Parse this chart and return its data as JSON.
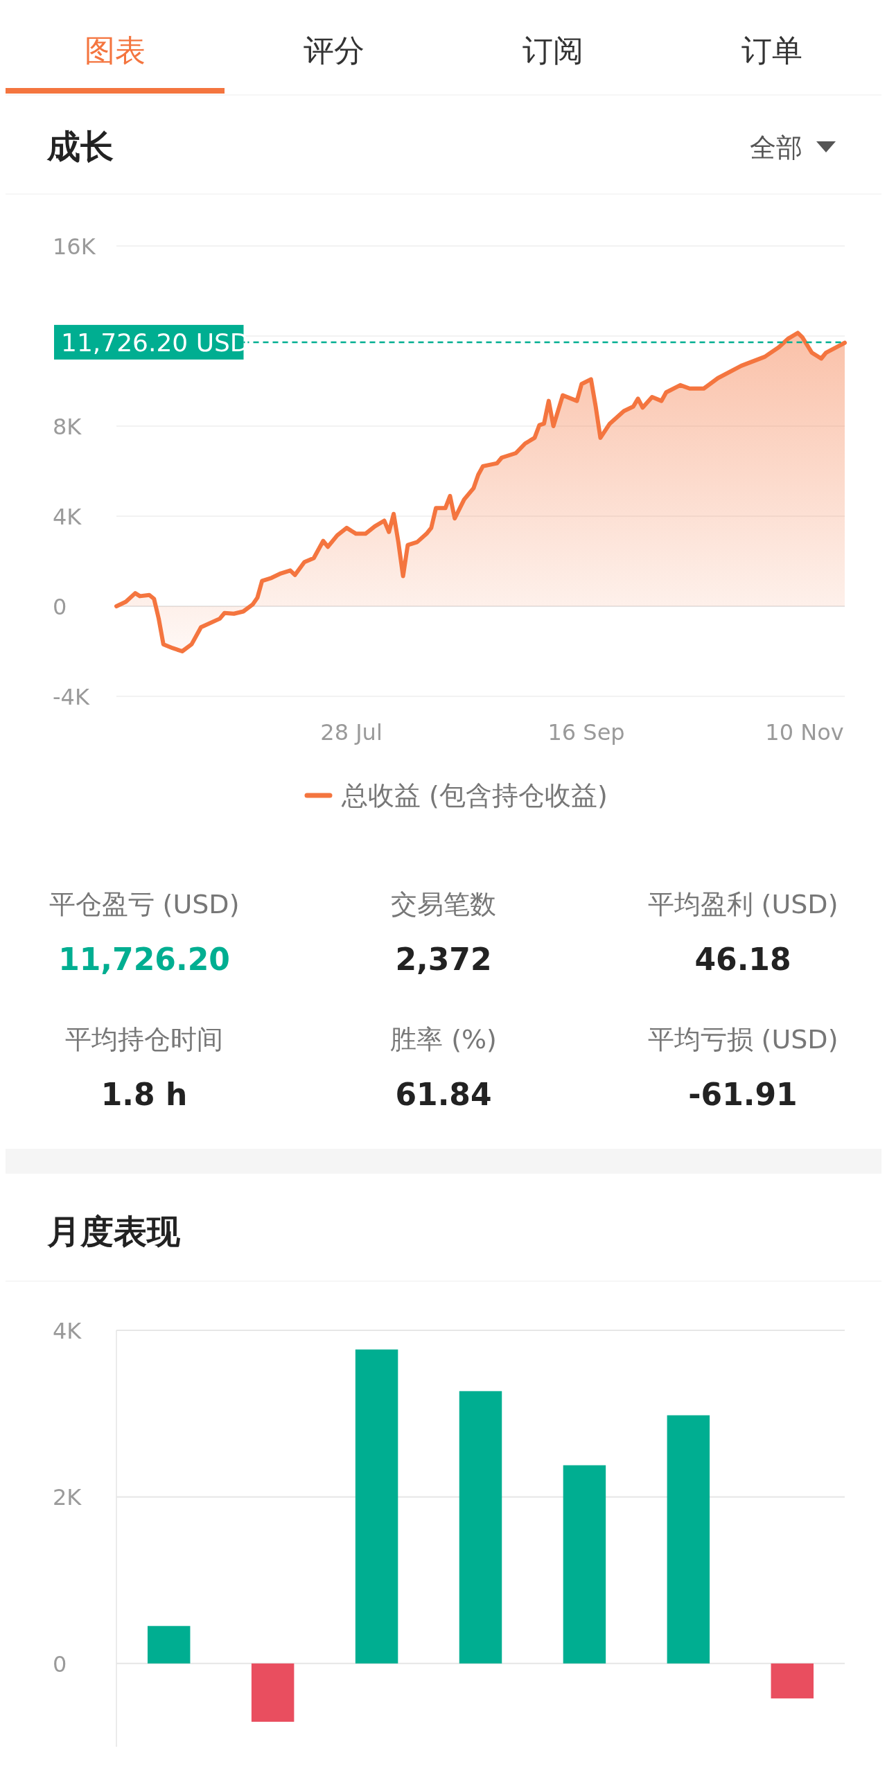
{
  "chart_data": [
    {
      "type": "other",
      "annotations": [
        "图表",
        "评分",
        "订阅",
        "订单"
      ]
    },
    {
      "type": "area",
      "title": "成长",
      "annotations": [
        "全部"
      ],
      "legend": "bottom",
      "grid": "y",
      "x": [
        "--06-08",
        "--06-10",
        "--06-12",
        "--06-13",
        "--06-15",
        "--06-16",
        "--06-17",
        "--06-18",
        "--06-20",
        "--06-22",
        "--06-24",
        "--06-26",
        "--06-30",
        "--07-01",
        "--07-03",
        "--07-05",
        "--07-07",
        "--07-08",
        "--07-09",
        "--07-11",
        "--07-13",
        "--07-15",
        "--07-16",
        "--07-18",
        "--07-20",
        "--07-22",
        "--07-23",
        "--07-25",
        "--07-27",
        "--07-29",
        "--07-31",
        "--08-02",
        "--08-04",
        "--08-05",
        "--08-06",
        "--08-07",
        "--08-08",
        "--08-09",
        "--08-11",
        "--08-13",
        "--08-14",
        "--08-15",
        "--08-17",
        "--08-18",
        "--08-19",
        "--08-21",
        "--08-23",
        "--08-24",
        "--08-25",
        "--08-28",
        "--08-29",
        "--09-01",
        "--09-03",
        "--09-05",
        "--09-06",
        "--09-07",
        "--09-08",
        "--09-09",
        "--09-11",
        "--09-14",
        "--09-15",
        "--09-17",
        "--09-18",
        "--09-19",
        "--09-21",
        "--09-24",
        "--09-26",
        "--09-27",
        "--09-28",
        "--09-30",
        "--10-02",
        "--10-03",
        "--10-06",
        "--10-08",
        "--10-11",
        "--10-14",
        "--10-19",
        "--10-24",
        "--10-27",
        "--10-29",
        "--10-31",
        "--11-01",
        "--11-03",
        "--11-05",
        "--11-06",
        "--11-09",
        "--11-10"
      ],
      "series": [
        {
          "name": "总收益 (包含持仓收益)",
          "color": "#f4753f",
          "values": [
            0,
            200,
            580,
            450,
            500,
            330,
            -550,
            -1690,
            -1860,
            -2000,
            -1690,
            -930,
            -550,
            -300,
            -330,
            -230,
            80,
            380,
            1130,
            1260,
            1460,
            1590,
            1390,
            1960,
            2140,
            2900,
            2640,
            3150,
            3480,
            3220,
            3220,
            3550,
            3800,
            3300,
            4100,
            2850,
            1340,
            2720,
            2850,
            3220,
            3480,
            4360,
            4360,
            4900,
            3900,
            4740,
            5240,
            5840,
            6220,
            6350,
            6600,
            6800,
            7230,
            7480,
            8040,
            8110,
            9120,
            8000,
            9370,
            9120,
            9870,
            10080,
            8870,
            7480,
            8110,
            8670,
            8870,
            9220,
            8820,
            9290,
            9120,
            9500,
            9820,
            9670,
            9670,
            10130,
            10680,
            11080,
            11510,
            11890,
            12140,
            11940,
            11260,
            11000,
            11260,
            11590,
            11700
          ]
        }
      ],
      "xlim": [
        "--06-08",
        "--11-10"
      ],
      "xticks": [
        {
          "value": "--07-28",
          "label": "28 Jul"
        },
        {
          "value": "--09-16",
          "label": "16 Sep"
        },
        {
          "value": "--11-10",
          "label": "10 Nov"
        }
      ],
      "ylim": [
        -4000,
        16000
      ],
      "yticks": [
        {
          "value": -4000,
          "label": "-4K"
        },
        {
          "value": 0,
          "label": "0"
        },
        {
          "value": 4000,
          "label": "4K"
        },
        {
          "value": 8000,
          "label": "8K"
        },
        {
          "value": 12000,
          "label": null
        },
        {
          "value": 16000,
          "label": "16K"
        }
      ],
      "ref_lines": [
        {
          "axis": "y",
          "value": 11726.2,
          "label": "11,726.20 USD",
          "color": "#00ae91",
          "line_style": "dashed"
        }
      ]
    },
    {
      "type": "other",
      "annotations": [
        "平仓盈亏 (USD)",
        "11,726.20",
        "交易笔数",
        "2,372",
        "平均盈利 (USD)",
        "46.18",
        "平均持仓时间",
        "1.8 h",
        "胜率 (%)",
        "61.84",
        "平均亏损 (USD)",
        "-61.91"
      ]
    },
    {
      "type": "bar",
      "title": "月度表现",
      "categories": [
        null,
        null,
        null,
        null,
        null,
        null,
        null
      ],
      "values": [
        450,
        -700,
        3770,
        3270,
        2380,
        2980,
        -420
      ],
      "colors": [
        "#00ae91",
        "#e94e5f",
        "#00ae91",
        "#00ae91",
        "#00ae91",
        "#00ae91",
        "#e94e5f"
      ],
      "ylim": [
        -1000,
        4000
      ],
      "yticks": [
        {
          "value": 0,
          "label": "0"
        },
        {
          "value": 2000,
          "label": "2K"
        },
        {
          "value": 4000,
          "label": "4K"
        }
      ],
      "grid": "y"
    }
  ]
}
